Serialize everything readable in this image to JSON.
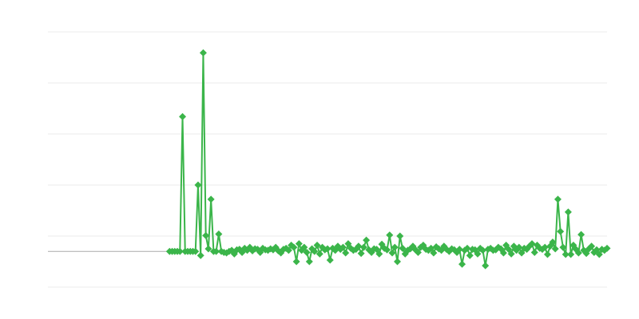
{
  "chart_data": {
    "type": "line",
    "title": "",
    "xlabel": "",
    "ylabel": "",
    "xlim": [
      -47,
      169
    ],
    "ylim": [
      -70,
      430
    ],
    "grid": true,
    "gridlines": [
      -70,
      30,
      130,
      230,
      330,
      430
    ],
    "baseline": 0,
    "marker": "diamond",
    "colors": {
      "series": "#3bb54a",
      "grid": "#ebebeb",
      "baseline": "#aaaaaa"
    },
    "series": [
      {
        "values": [
          0,
          0,
          0,
          0,
          0,
          264,
          0,
          0,
          0,
          0,
          0,
          130,
          -8,
          389,
          31,
          5,
          102,
          0,
          0,
          34,
          0,
          -2,
          -3,
          0,
          2,
          -5,
          3,
          4,
          -2,
          6,
          2,
          8,
          1,
          5,
          4,
          -2,
          6,
          3,
          2,
          5,
          3,
          8,
          1,
          -3,
          4,
          6,
          2,
          12,
          8,
          -20,
          15,
          2,
          8,
          -2,
          -20,
          5,
          0,
          12,
          -5,
          8,
          3,
          5,
          -17,
          6,
          2,
          10,
          4,
          8,
          -3,
          15,
          6,
          2,
          4,
          10,
          -4,
          8,
          22,
          3,
          -2,
          5,
          4,
          -5,
          14,
          6,
          3,
          32,
          -3,
          8,
          -20,
          30,
          6,
          -5,
          2,
          5,
          10,
          3,
          -2,
          8,
          12,
          4,
          2,
          6,
          -3,
          9,
          5,
          2,
          10,
          4,
          0,
          5,
          3,
          -2,
          4,
          -25,
          2,
          6,
          -8,
          4,
          3,
          -5,
          6,
          2,
          -28,
          4,
          6,
          2,
          3,
          8,
          5,
          -3,
          12,
          4,
          -5,
          10,
          2,
          8,
          -3,
          6,
          4,
          10,
          15,
          -2,
          12,
          6,
          4,
          8,
          -6,
          10,
          18,
          5,
          102,
          39,
          8,
          -6,
          77,
          -6,
          12,
          4,
          -3,
          33,
          2,
          -4,
          5,
          10,
          -2,
          3,
          -6,
          4,
          2,
          6
        ]
      }
    ]
  }
}
